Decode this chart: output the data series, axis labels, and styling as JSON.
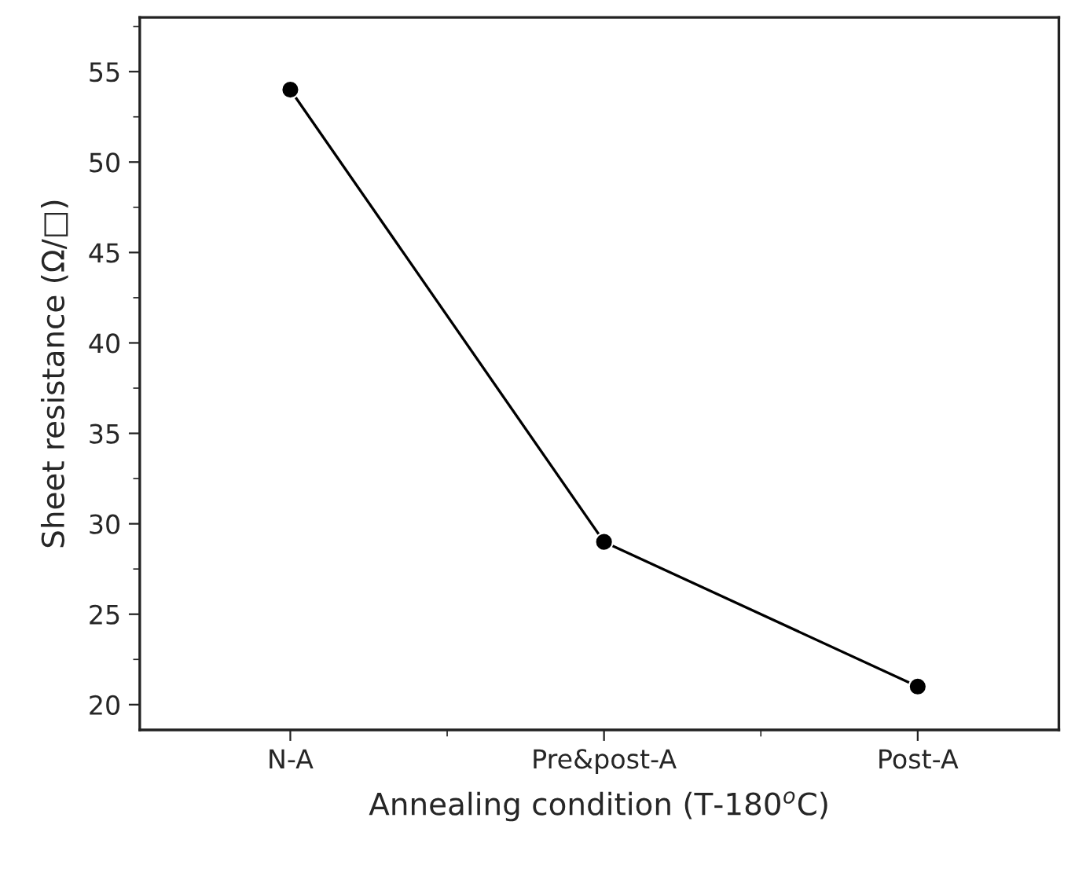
{
  "chart_data": {
    "type": "line",
    "xlabel": "Annealing condition (T-180$^{o}$C)",
    "ylabel": "Sheet resistance (Ω/□)",
    "categories": [
      "N-A",
      "Pre&post-A",
      "Post-A"
    ],
    "series": [
      {
        "color": "#000000",
        "values": [
          54,
          29,
          21
        ]
      }
    ],
    "ylim": [
      18.6,
      58
    ],
    "yticks": [
      20,
      {
        "value": 22.5,
        "label": null
      },
      25,
      {
        "value": 27.5,
        "label": null
      },
      30,
      {
        "value": 32.5,
        "label": null
      },
      35,
      {
        "value": 37.5,
        "label": null
      },
      40,
      {
        "value": 42.5,
        "label": null
      },
      45,
      {
        "value": 47.5,
        "label": null
      },
      50,
      {
        "value": 52.5,
        "label": null
      },
      55,
      {
        "value": 57.5,
        "label": null
      }
    ],
    "marker": "circle",
    "line_style": "solid",
    "grid": false,
    "legend": false
  }
}
